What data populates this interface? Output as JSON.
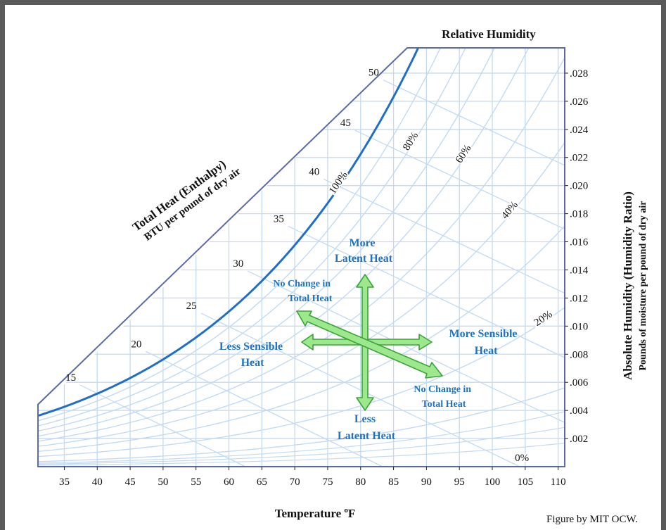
{
  "chart_data": {
    "type": "line",
    "title": "Relative Humidity",
    "xlabel_prefix": "Temperature ",
    "xlabel_sup": "o",
    "xlabel_suffix": "F",
    "ylabel_line1": "Absolute Humidity (Humidity Ratio)",
    "ylabel_line2": "Pounds of moisture per pound of dry air",
    "enthalpy_label_line1": "Total Heat (Enthalpy)",
    "enthalpy_label_line2": "BTU per pound of dry air",
    "x_ticks": [
      35,
      40,
      45,
      50,
      55,
      60,
      65,
      70,
      75,
      80,
      85,
      90,
      95,
      100,
      105,
      110
    ],
    "y_ticks": [
      ".002",
      ".004",
      ".006",
      ".008",
      ".010",
      ".012",
      ".014",
      ".016",
      ".018",
      ".020",
      ".022",
      ".024",
      ".026",
      ".028"
    ],
    "xlim": [
      31,
      111
    ],
    "ylim": [
      0,
      0.0298
    ],
    "enthalpy_ticks": [
      15,
      20,
      25,
      30,
      35,
      40,
      45,
      50
    ],
    "rh_curves": [
      10,
      20,
      30,
      40,
      50,
      60,
      70,
      80,
      90,
      100
    ],
    "rh_labels": [
      {
        "text": "100%",
        "rh": 100
      },
      {
        "text": "80%",
        "rh": 80
      },
      {
        "text": "60%",
        "rh": 60
      },
      {
        "text": "40%",
        "rh": 40
      },
      {
        "text": "20%",
        "rh": 20
      },
      {
        "text": "0%",
        "rh": 0
      }
    ],
    "grid": true,
    "annotations": {
      "more_latent": [
        "More",
        "Latent Heat"
      ],
      "less_latent": [
        "Less",
        "Latent Heat"
      ],
      "more_sensible": [
        "More Sensible",
        "Heat"
      ],
      "less_sensible": [
        "Less Sensible",
        "Heat"
      ],
      "no_change_upper": [
        "No Change in",
        "Total Heat"
      ],
      "no_change_lower": [
        "No Change in",
        "Total Heat"
      ]
    },
    "credit": "Figure by MIT OCW.",
    "colors": {
      "saturation": "#1f6fc9",
      "grid": "#c3daf3",
      "border": "#5b6aa8",
      "arrow_fill": "#9de88c",
      "arrow_stroke": "#3aa43a",
      "annotation": "#1f73c6"
    }
  }
}
